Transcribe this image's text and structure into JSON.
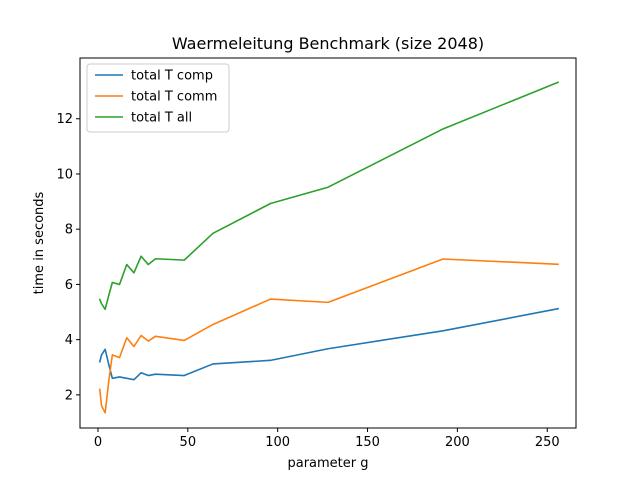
{
  "chart_data": {
    "type": "line",
    "title": "Waermeleitung Benchmark (size 2048)",
    "xlabel": "parameter g",
    "ylabel": "time in seconds",
    "xlim": [
      -10,
      266
    ],
    "ylim": [
      0.8,
      14.2
    ],
    "xticks": [
      0,
      50,
      100,
      150,
      200,
      250
    ],
    "yticks": [
      2,
      4,
      6,
      8,
      10,
      12
    ],
    "grid": false,
    "legend_position": "top-left",
    "x": [
      1,
      2,
      4,
      6,
      8,
      12,
      16,
      20,
      24,
      28,
      32,
      48,
      64,
      96,
      128,
      192,
      256
    ],
    "series": [
      {
        "name": "total T comp",
        "color": "#1f77b4",
        "values": [
          3.2,
          3.45,
          3.65,
          3.1,
          2.6,
          2.65,
          2.6,
          2.55,
          2.8,
          2.7,
          2.75,
          2.7,
          3.12,
          3.25,
          3.67,
          4.32,
          5.12
        ]
      },
      {
        "name": "total T comm",
        "color": "#ff7f0e",
        "values": [
          2.2,
          1.6,
          1.35,
          2.5,
          3.45,
          3.35,
          4.07,
          3.75,
          4.15,
          3.95,
          4.12,
          3.97,
          4.55,
          5.47,
          5.35,
          6.92,
          6.73
        ]
      },
      {
        "name": "total T all",
        "color": "#2ca02c",
        "values": [
          5.45,
          5.3,
          5.1,
          5.6,
          6.07,
          6.0,
          6.72,
          6.42,
          7.02,
          6.72,
          6.93,
          6.88,
          7.85,
          8.93,
          9.52,
          11.63,
          13.32
        ]
      }
    ]
  }
}
